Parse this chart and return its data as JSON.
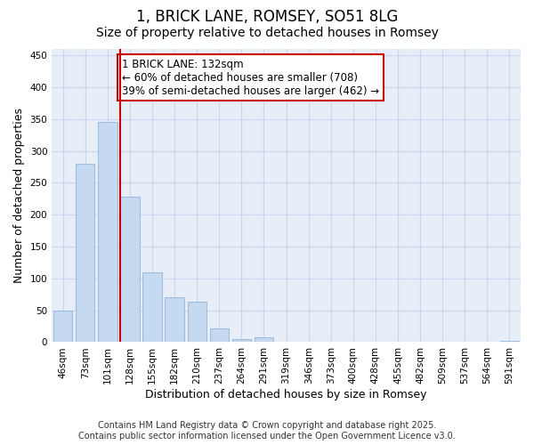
{
  "title_line1": "1, BRICK LANE, ROMSEY, SO51 8LG",
  "title_line2": "Size of property relative to detached houses in Romsey",
  "xlabel": "Distribution of detached houses by size in Romsey",
  "ylabel": "Number of detached properties",
  "categories": [
    "46sqm",
    "73sqm",
    "101sqm",
    "128sqm",
    "155sqm",
    "182sqm",
    "210sqm",
    "237sqm",
    "264sqm",
    "291sqm",
    "319sqm",
    "346sqm",
    "373sqm",
    "400sqm",
    "428sqm",
    "455sqm",
    "482sqm",
    "509sqm",
    "537sqm",
    "564sqm",
    "591sqm"
  ],
  "values": [
    50,
    280,
    345,
    228,
    110,
    70,
    63,
    22,
    5,
    7,
    0,
    0,
    0,
    0,
    0,
    0,
    0,
    0,
    0,
    0,
    2
  ],
  "bar_color": "#c5d9f0",
  "bar_edge_color": "#a0bedd",
  "vline_x_index": 3,
  "vline_color": "#cc0000",
  "annotation_text": "1 BRICK LANE: 132sqm\n← 60% of detached houses are smaller (708)\n39% of semi-detached houses are larger (462) →",
  "annotation_box_color": "#cc0000",
  "background_color": "#e8eef8",
  "grid_color": "#c8d8f0",
  "ylim": [
    0,
    460
  ],
  "yticks": [
    0,
    50,
    100,
    150,
    200,
    250,
    300,
    350,
    400,
    450
  ],
  "footer_line1": "Contains HM Land Registry data © Crown copyright and database right 2025.",
  "footer_line2": "Contains public sector information licensed under the Open Government Licence v3.0.",
  "title_fontsize": 12,
  "subtitle_fontsize": 10,
  "xlabel_fontsize": 9,
  "ylabel_fontsize": 9,
  "tick_fontsize": 7.5,
  "annotation_fontsize": 8.5,
  "footer_fontsize": 7
}
